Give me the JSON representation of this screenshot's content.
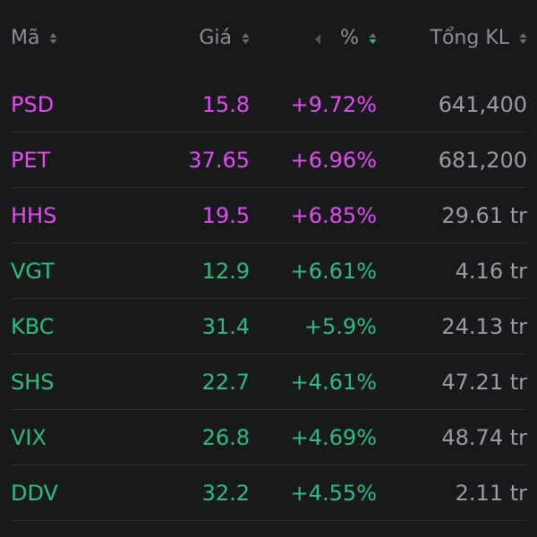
{
  "header": {
    "symbol": "Mã",
    "price": "Giá",
    "percent": "%",
    "volume": "Tổng KL"
  },
  "colors": {
    "background": "#18191b",
    "ceiling": "#e34cf0",
    "up": "#2ebd7f",
    "header_text": "#8e8f93",
    "volume_text": "#9b9ca0",
    "divider": "#2c2d31"
  },
  "rows": [
    {
      "symbol": "PSD",
      "price": "15.8",
      "percent": "+9.72%",
      "volume": "641,400",
      "status": "ceiling"
    },
    {
      "symbol": "PET",
      "price": "37.65",
      "percent": "+6.96%",
      "volume": "681,200",
      "status": "ceiling"
    },
    {
      "symbol": "HHS",
      "price": "19.5",
      "percent": "+6.85%",
      "volume": "29.61 tr",
      "status": "ceiling"
    },
    {
      "symbol": "VGT",
      "price": "12.9",
      "percent": "+6.61%",
      "volume": "4.16 tr",
      "status": "up"
    },
    {
      "symbol": "KBC",
      "price": "31.4",
      "percent": "+5.9%",
      "volume": "24.13 tr",
      "status": "up"
    },
    {
      "symbol": "SHS",
      "price": "22.7",
      "percent": "+4.61%",
      "volume": "47.21 tr",
      "status": "up"
    },
    {
      "symbol": "VIX",
      "price": "26.8",
      "percent": "+4.69%",
      "volume": "48.74 tr",
      "status": "up"
    },
    {
      "symbol": "DDV",
      "price": "32.2",
      "percent": "+4.55%",
      "volume": "2.11 tr",
      "status": "up"
    }
  ]
}
